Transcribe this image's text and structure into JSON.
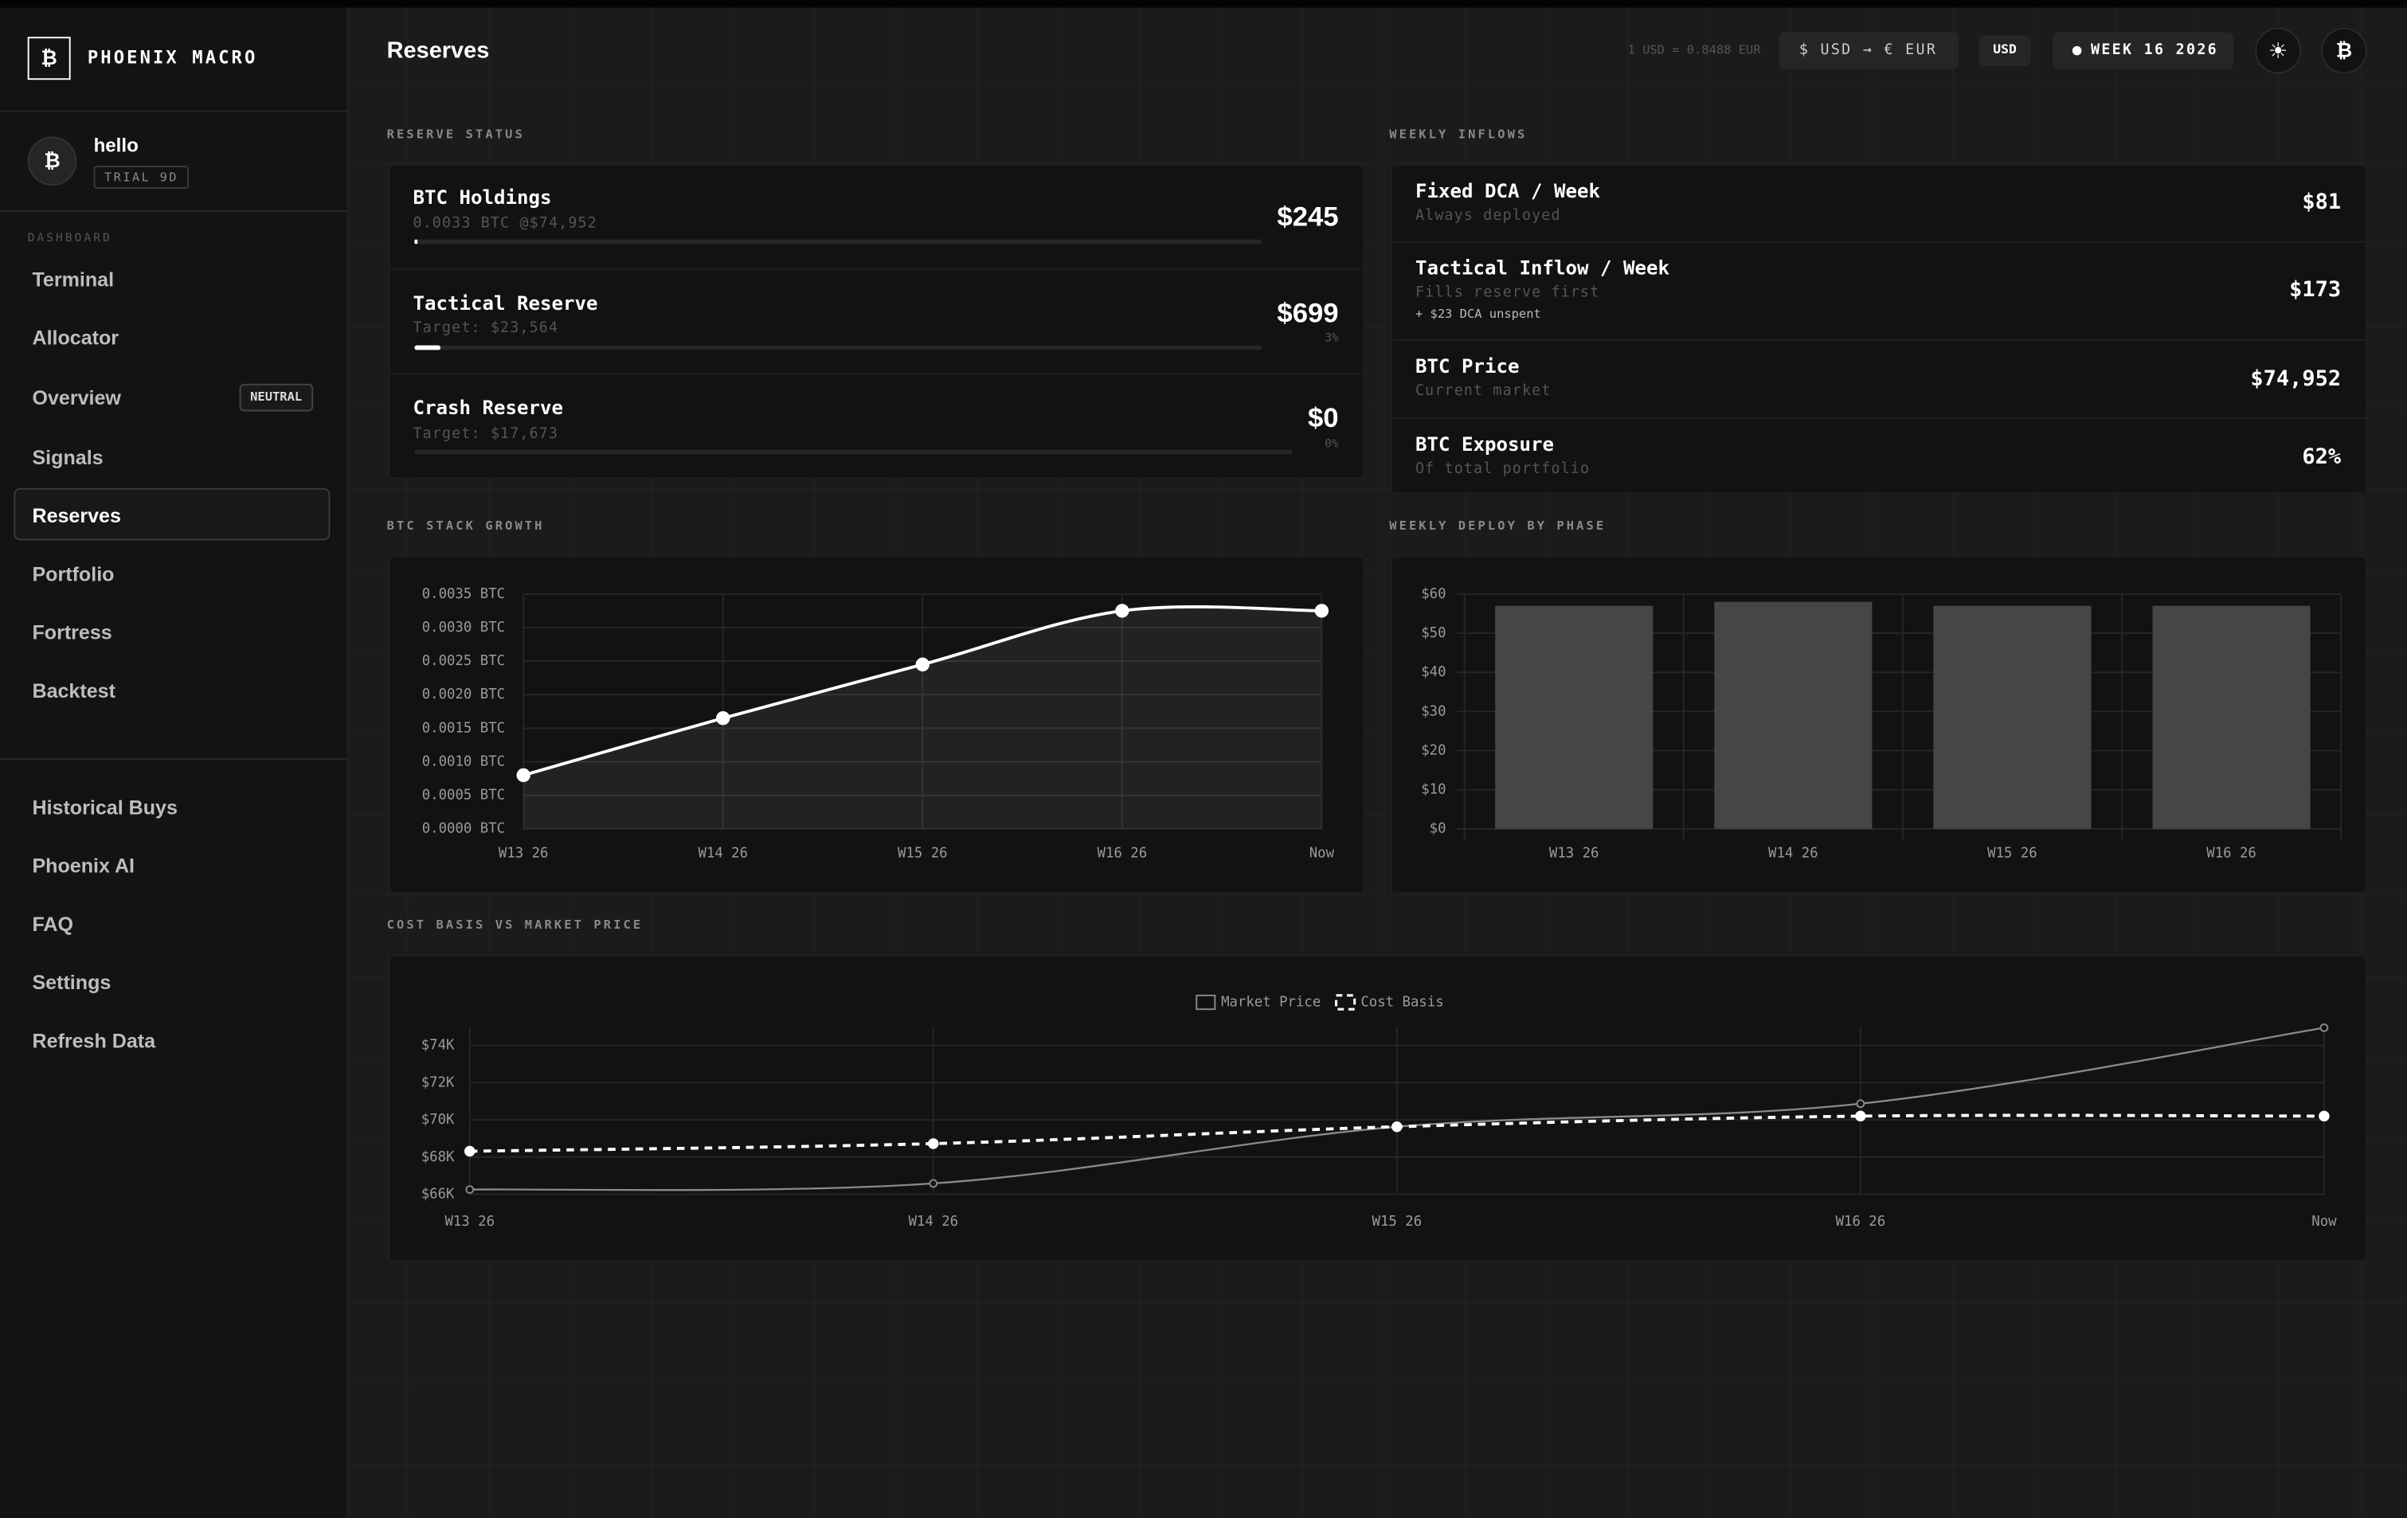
{
  "sidebar": {
    "logo": "₿",
    "brand": "PHOENIX MACRO",
    "user": {
      "avatar": "₿",
      "name": "hello",
      "badge": "TRIAL 9D"
    },
    "section": "DASHBOARD",
    "nav": [
      {
        "label": "Terminal"
      },
      {
        "label": "Allocator"
      },
      {
        "label": "Overview",
        "badge": "NEUTRAL"
      },
      {
        "label": "Signals"
      },
      {
        "label": "Reserves",
        "active": true
      },
      {
        "label": "Portfolio"
      },
      {
        "label": "Fortress"
      },
      {
        "label": "Backtest"
      }
    ],
    "secondary": [
      "Historical Buys",
      "Phoenix AI",
      "FAQ",
      "Settings",
      "Refresh Data"
    ]
  },
  "header": {
    "title": "Reserves",
    "rate": "1 USD = 0.8488 EUR",
    "toggle": "$ USD → € EUR",
    "currency": "USD",
    "week": "WEEK 16 2026",
    "theme_icon": "☀",
    "account_icon": "₿"
  },
  "reserve_status": {
    "label": "RESERVE STATUS",
    "items": [
      {
        "title": "BTC Holdings",
        "subtitle": "0.0033 BTC @$74,952",
        "value": "$245",
        "progress": 0.4
      },
      {
        "title": "Tactical Reserve",
        "subtitle": "Target: $23,564",
        "value": "$699",
        "progress": {
          "value": 3,
          "label": "3%"
        }
      },
      {
        "title": "Crash Reserve",
        "subtitle": "Target: $17,673",
        "value": "$0",
        "progress": {
          "value": 0,
          "label": "0%"
        }
      }
    ]
  },
  "weekly_inflows": {
    "label": "WEEKLY INFLOWS",
    "rows": [
      {
        "title": "Fixed DCA / Week",
        "subtitle": "Always deployed",
        "value": "$81"
      },
      {
        "title": "Tactical Inflow / Week",
        "subtitle": "Fills reserve first",
        "note": "+ $23 DCA unspent",
        "value": "$173"
      },
      {
        "title": "BTC Price",
        "subtitle": "Current market",
        "value": "$74,952"
      },
      {
        "title": "BTC Exposure",
        "subtitle": "Of total portfolio",
        "value": "62%"
      }
    ]
  },
  "chart_data": [
    {
      "type": "line",
      "title": "BTC STACK GROWTH",
      "categories": [
        "W13 26",
        "W14 26",
        "W15 26",
        "W16 26",
        "Now"
      ],
      "values": [
        0.0008,
        0.00165,
        0.00245,
        0.00325,
        0.00325
      ],
      "color": "#ffffff",
      "area": true,
      "ylim": [
        0,
        0.0035
      ],
      "yticks": [
        {
          "value": 0,
          "label": "0.0000 BTC"
        },
        {
          "value": 0.0005,
          "label": "0.0005 BTC"
        },
        {
          "value": 0.001,
          "label": "0.0010 BTC"
        },
        {
          "value": 0.0015,
          "label": "0.0015 BTC"
        },
        {
          "value": 0.002,
          "label": "0.0020 BTC"
        },
        {
          "value": 0.0025,
          "label": "0.0025 BTC"
        },
        {
          "value": 0.003,
          "label": "0.0030 BTC"
        },
        {
          "value": 0.0035,
          "label": "0.0035 BTC"
        }
      ],
      "grid": true
    },
    {
      "type": "bar",
      "title": "WEEKLY DEPLOY BY PHASE",
      "categories": [
        "W13 26",
        "W14 26",
        "W15 26",
        "W16 26"
      ],
      "values": [
        57,
        58,
        57,
        57
      ],
      "color": "#464646",
      "ylim": [
        0,
        60
      ],
      "yticks": [
        {
          "value": 0,
          "label": "$0"
        },
        {
          "value": 10,
          "label": "$10"
        },
        {
          "value": 20,
          "label": "$20"
        },
        {
          "value": 30,
          "label": "$30"
        },
        {
          "value": 40,
          "label": "$40"
        },
        {
          "value": 50,
          "label": "$50"
        },
        {
          "value": 60,
          "label": "$60"
        }
      ],
      "grid": true
    },
    {
      "type": "line",
      "title": "COST BASIS VS MARKET PRICE",
      "categories": [
        "W13 26",
        "W14 26",
        "W15 26",
        "W16 26",
        "Now"
      ],
      "series": [
        {
          "name": "Market Price",
          "color": "#8a8a8a",
          "style": "solid",
          "values": [
            66250,
            66580,
            69630,
            70870,
            74952
          ]
        },
        {
          "name": "Cost Basis",
          "color": "#ffffff",
          "style": "dashed",
          "values": [
            68310,
            68720,
            69630,
            70200,
            70200
          ]
        }
      ],
      "ylim": [
        66000,
        75000
      ],
      "yticks": [
        {
          "value": 66000,
          "label": "$66K"
        },
        {
          "value": 68000,
          "label": "$68K"
        },
        {
          "value": 70000,
          "label": "$70K"
        },
        {
          "value": 72000,
          "label": "$72K"
        },
        {
          "value": 74000,
          "label": "$74K"
        }
      ],
      "grid": true,
      "legend": "top"
    }
  ]
}
